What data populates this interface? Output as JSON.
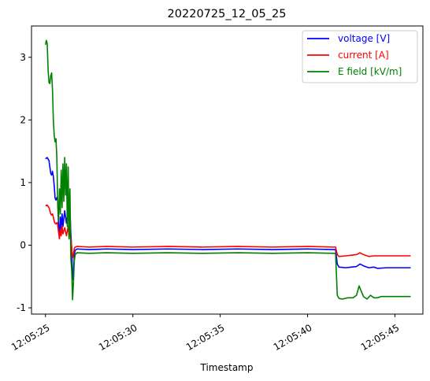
{
  "chart_data": {
    "type": "line",
    "title": "20220725_12_05_25",
    "xlabel": "Timestamp",
    "ylabel": "",
    "xlim": [
      "12:05:24.2",
      "12:05:46.6"
    ],
    "ylim": [
      -1.1,
      3.5
    ],
    "xticks": [
      "12:05:25",
      "12:05:30",
      "12:05:35",
      "12:05:40",
      "12:05:45"
    ],
    "yticks": [
      "-1",
      "0",
      "1",
      "2",
      "3"
    ],
    "xtick_values": [
      25,
      30,
      35,
      40,
      45
    ],
    "ytick_values": [
      -1,
      0,
      1,
      2,
      3
    ],
    "grid": false,
    "legend_position": "top-right",
    "series": [
      {
        "name": "voltage [V]",
        "color": "#0000ff",
        "points": [
          [
            25.0,
            1.38
          ],
          [
            25.1,
            1.4
          ],
          [
            25.2,
            1.35
          ],
          [
            25.3,
            1.15
          ],
          [
            25.35,
            1.12
          ],
          [
            25.4,
            1.18
          ],
          [
            25.45,
            1.1
          ],
          [
            25.5,
            0.95
          ],
          [
            25.55,
            0.75
          ],
          [
            25.6,
            0.72
          ],
          [
            25.65,
            0.76
          ],
          [
            25.7,
            0.72
          ],
          [
            25.75,
            0.3
          ],
          [
            25.8,
            0.18
          ],
          [
            25.85,
            0.45
          ],
          [
            25.9,
            0.25
          ],
          [
            25.95,
            0.5
          ],
          [
            26.0,
            0.3
          ],
          [
            26.1,
            0.55
          ],
          [
            26.2,
            0.35
          ],
          [
            26.3,
            0.6
          ],
          [
            26.35,
            0.28
          ],
          [
            26.4,
            0.55
          ],
          [
            26.45,
            0.2
          ],
          [
            26.5,
            -0.05
          ],
          [
            26.55,
            -0.55
          ],
          [
            26.6,
            -0.45
          ],
          [
            26.65,
            -0.15
          ],
          [
            26.7,
            -0.08
          ],
          [
            26.8,
            -0.06
          ],
          [
            27.5,
            -0.07
          ],
          [
            28.5,
            -0.06
          ],
          [
            30.0,
            -0.07
          ],
          [
            32.0,
            -0.06
          ],
          [
            34.0,
            -0.07
          ],
          [
            36.0,
            -0.06
          ],
          [
            38.0,
            -0.07
          ],
          [
            40.0,
            -0.06
          ],
          [
            41.5,
            -0.07
          ],
          [
            41.6,
            -0.07
          ],
          [
            41.7,
            -0.3
          ],
          [
            41.8,
            -0.35
          ],
          [
            42.2,
            -0.36
          ],
          [
            42.5,
            -0.35
          ],
          [
            42.8,
            -0.34
          ],
          [
            43.0,
            -0.3
          ],
          [
            43.2,
            -0.33
          ],
          [
            43.5,
            -0.36
          ],
          [
            43.8,
            -0.35
          ],
          [
            44.0,
            -0.37
          ],
          [
            44.5,
            -0.36
          ],
          [
            45.0,
            -0.36
          ],
          [
            45.5,
            -0.36
          ],
          [
            45.9,
            -0.36
          ]
        ]
      },
      {
        "name": "current [A]",
        "color": "#ff0000",
        "points": [
          [
            25.0,
            0.63
          ],
          [
            25.1,
            0.64
          ],
          [
            25.2,
            0.6
          ],
          [
            25.3,
            0.5
          ],
          [
            25.35,
            0.48
          ],
          [
            25.4,
            0.5
          ],
          [
            25.45,
            0.45
          ],
          [
            25.5,
            0.38
          ],
          [
            25.55,
            0.35
          ],
          [
            25.6,
            0.34
          ],
          [
            25.65,
            0.36
          ],
          [
            25.7,
            0.33
          ],
          [
            25.75,
            0.2
          ],
          [
            25.8,
            0.1
          ],
          [
            25.85,
            0.25
          ],
          [
            25.9,
            0.15
          ],
          [
            25.95,
            0.3
          ],
          [
            26.0,
            0.18
          ],
          [
            26.1,
            0.28
          ],
          [
            26.2,
            0.15
          ],
          [
            26.3,
            0.3
          ],
          [
            26.35,
            0.12
          ],
          [
            26.4,
            0.25
          ],
          [
            26.45,
            0.1
          ],
          [
            26.5,
            -0.03
          ],
          [
            26.55,
            -0.2
          ],
          [
            26.6,
            -0.15
          ],
          [
            26.65,
            -0.05
          ],
          [
            26.7,
            -0.03
          ],
          [
            26.8,
            -0.02
          ],
          [
            27.5,
            -0.03
          ],
          [
            28.5,
            -0.02
          ],
          [
            30.0,
            -0.03
          ],
          [
            32.0,
            -0.02
          ],
          [
            34.0,
            -0.03
          ],
          [
            36.0,
            -0.02
          ],
          [
            38.0,
            -0.03
          ],
          [
            40.0,
            -0.02
          ],
          [
            41.5,
            -0.03
          ],
          [
            41.6,
            -0.03
          ],
          [
            41.7,
            -0.15
          ],
          [
            41.8,
            -0.18
          ],
          [
            42.2,
            -0.17
          ],
          [
            42.5,
            -0.16
          ],
          [
            42.8,
            -0.15
          ],
          [
            43.0,
            -0.12
          ],
          [
            43.2,
            -0.15
          ],
          [
            43.5,
            -0.18
          ],
          [
            43.8,
            -0.17
          ],
          [
            44.0,
            -0.17
          ],
          [
            44.5,
            -0.17
          ],
          [
            45.0,
            -0.17
          ],
          [
            45.5,
            -0.17
          ],
          [
            45.9,
            -0.17
          ]
        ]
      },
      {
        "name": "E field [kV/m]",
        "color": "#008000",
        "points": [
          [
            25.0,
            3.2
          ],
          [
            25.05,
            3.27
          ],
          [
            25.1,
            3.22
          ],
          [
            25.15,
            2.8
          ],
          [
            25.2,
            2.6
          ],
          [
            25.25,
            2.58
          ],
          [
            25.3,
            2.7
          ],
          [
            25.35,
            2.75
          ],
          [
            25.4,
            2.5
          ],
          [
            25.45,
            2.0
          ],
          [
            25.5,
            1.75
          ],
          [
            25.55,
            1.65
          ],
          [
            25.6,
            1.7
          ],
          [
            25.65,
            1.4
          ],
          [
            25.7,
            0.65
          ],
          [
            25.75,
            0.4
          ],
          [
            25.8,
            0.9
          ],
          [
            25.85,
            0.5
          ],
          [
            25.9,
            1.2
          ],
          [
            25.95,
            0.6
          ],
          [
            26.0,
            1.3
          ],
          [
            26.05,
            0.7
          ],
          [
            26.1,
            1.4
          ],
          [
            26.15,
            0.8
          ],
          [
            26.2,
            1.3
          ],
          [
            26.25,
            0.3
          ],
          [
            26.3,
            1.25
          ],
          [
            26.35,
            0.1
          ],
          [
            26.4,
            0.9
          ],
          [
            26.45,
            -0.2
          ],
          [
            26.5,
            -0.4
          ],
          [
            26.55,
            -0.87
          ],
          [
            26.6,
            -0.6
          ],
          [
            26.65,
            -0.25
          ],
          [
            26.7,
            -0.15
          ],
          [
            26.8,
            -0.12
          ],
          [
            27.5,
            -0.13
          ],
          [
            28.5,
            -0.12
          ],
          [
            30.0,
            -0.13
          ],
          [
            32.0,
            -0.12
          ],
          [
            34.0,
            -0.13
          ],
          [
            36.0,
            -0.12
          ],
          [
            38.0,
            -0.13
          ],
          [
            40.0,
            -0.12
          ],
          [
            41.5,
            -0.13
          ],
          [
            41.6,
            -0.13
          ],
          [
            41.7,
            -0.8
          ],
          [
            41.8,
            -0.85
          ],
          [
            42.0,
            -0.86
          ],
          [
            42.3,
            -0.84
          ],
          [
            42.6,
            -0.84
          ],
          [
            42.8,
            -0.8
          ],
          [
            42.95,
            -0.65
          ],
          [
            43.05,
            -0.72
          ],
          [
            43.2,
            -0.82
          ],
          [
            43.4,
            -0.86
          ],
          [
            43.6,
            -0.8
          ],
          [
            43.8,
            -0.84
          ],
          [
            44.0,
            -0.84
          ],
          [
            44.2,
            -0.82
          ],
          [
            44.5,
            -0.82
          ],
          [
            45.0,
            -0.82
          ],
          [
            45.5,
            -0.82
          ],
          [
            45.9,
            -0.82
          ]
        ]
      }
    ]
  }
}
